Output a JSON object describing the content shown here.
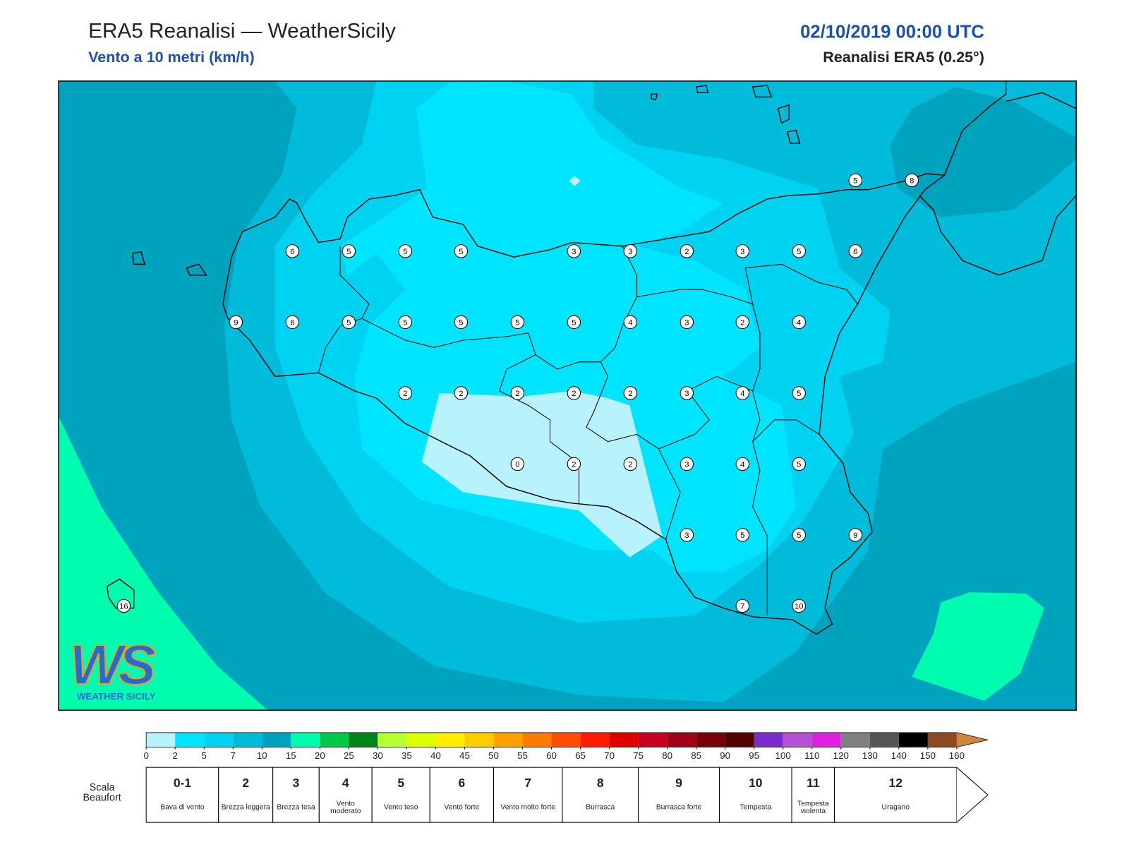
{
  "header": {
    "title": "ERA5 Reanalisi — WeatherSicily",
    "subtitle": "Vento a 10 metri (km/h)",
    "datetime": "02/10/2019 00:00 UTC",
    "source": "Reanalisi ERA5 (0.25°)"
  },
  "stations": [
    5,
    8,
    6,
    5,
    5,
    5,
    3,
    3,
    2,
    3,
    5,
    6,
    9,
    6,
    5,
    5,
    5,
    5,
    5,
    4,
    3,
    2,
    4,
    2,
    2,
    2,
    2,
    2,
    3,
    4,
    5,
    0,
    2,
    2,
    3,
    4,
    5,
    3,
    5,
    5,
    9,
    7,
    10,
    16
  ],
  "logo": {
    "mark": "WS",
    "name": "WEATHER SICILY"
  },
  "colorbar": {
    "ticks": [
      0,
      2,
      5,
      7,
      10,
      15,
      20,
      25,
      30,
      35,
      40,
      45,
      50,
      55,
      60,
      65,
      70,
      75,
      80,
      85,
      90,
      95,
      100,
      110,
      120,
      130,
      140,
      150,
      160
    ],
    "colors": [
      "#b8f2fd",
      "#00e5ff",
      "#00d2f2",
      "#00bcda",
      "#00a3bd",
      "#00fcae",
      "#00c94a",
      "#00841e",
      "#b6ff33",
      "#dcff00",
      "#ffee00",
      "#ffcc00",
      "#ffa200",
      "#ff7a00",
      "#ff4c00",
      "#ff1a00",
      "#e00000",
      "#c80024",
      "#a00018",
      "#7a0008",
      "#520000",
      "#7b2ccf",
      "#b451d4",
      "#e020e0",
      "#808080",
      "#555555",
      "#000000",
      "#8a4a22",
      "#cd853f"
    ]
  },
  "beaufort": {
    "label": "Scala Beaufort",
    "levels": [
      {
        "force": "0-1",
        "name": "Bava di vento"
      },
      {
        "force": 2,
        "name": "Brezza leggera"
      },
      {
        "force": 3,
        "name": "Brezza tesa"
      },
      {
        "force": 4,
        "name": "Vento moderato"
      },
      {
        "force": 5,
        "name": "Vento teso"
      },
      {
        "force": 6,
        "name": "Vento forte"
      },
      {
        "force": 7,
        "name": "Vento molto forte"
      },
      {
        "force": 8,
        "name": "Burrasca"
      },
      {
        "force": 9,
        "name": "Burrasca forte"
      },
      {
        "force": 10,
        "name": "Tempesta"
      },
      {
        "force": 11,
        "name": "Tempesta violenta"
      },
      {
        "force": 12,
        "name": "Uragano"
      }
    ]
  }
}
